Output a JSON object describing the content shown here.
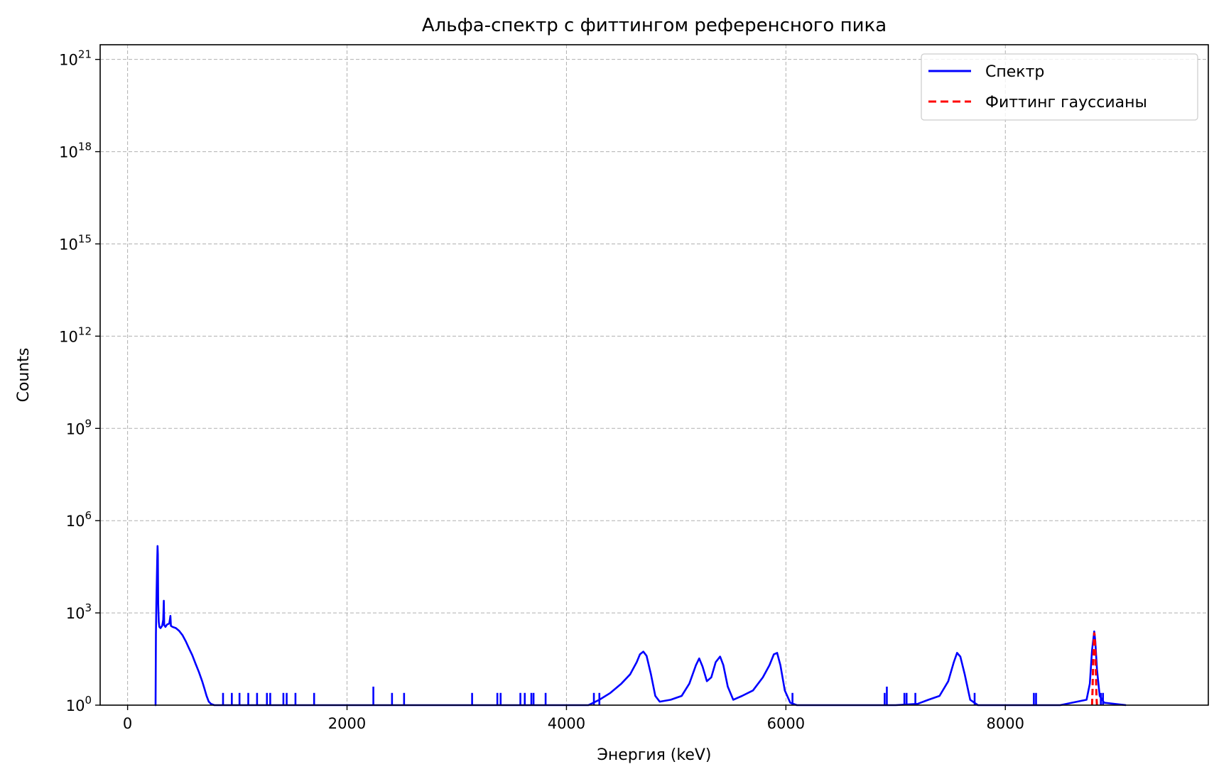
{
  "chart_data": {
    "type": "line",
    "title": "Альфа-спектр с фиттингом референсного пика",
    "xlabel": "Энергия (keV)",
    "ylabel": "Counts",
    "y_scale": "log",
    "xlim": [
      -250,
      9850
    ],
    "ylim": [
      1,
      3e+21
    ],
    "grid": true,
    "legend_position": "top-right",
    "x_ticks": [
      0,
      2000,
      4000,
      6000,
      8000
    ],
    "x_tick_labels": [
      "0",
      "2000",
      "4000",
      "6000",
      "8000"
    ],
    "y_ticks": [
      1,
      1000.0,
      1000000.0,
      1000000000.0,
      1000000000000.0,
      1000000000000000.0,
      1e+18,
      1e+21
    ],
    "y_tick_labels": [
      {
        "base": "10",
        "exp": "0"
      },
      {
        "base": "10",
        "exp": "3"
      },
      {
        "base": "10",
        "exp": "6"
      },
      {
        "base": "10",
        "exp": "9"
      },
      {
        "base": "10",
        "exp": "12"
      },
      {
        "base": "10",
        "exp": "15"
      },
      {
        "base": "10",
        "exp": "18"
      },
      {
        "base": "10",
        "exp": "21"
      }
    ],
    "series": [
      {
        "name": "Спектр",
        "color": "#0000ff",
        "style": "solid",
        "points": [
          [
            250,
            1
          ],
          [
            255,
            1
          ],
          [
            258,
            200
          ],
          [
            262,
            2000
          ],
          [
            266,
            10000
          ],
          [
            270,
            50000
          ],
          [
            273,
            150000
          ],
          [
            276,
            80000
          ],
          [
            279,
            2000
          ],
          [
            284,
            500
          ],
          [
            290,
            350
          ],
          [
            300,
            320
          ],
          [
            315,
            380
          ],
          [
            325,
            600
          ],
          [
            330,
            2500
          ],
          [
            334,
            400
          ],
          [
            345,
            350
          ],
          [
            360,
            420
          ],
          [
            380,
            450
          ],
          [
            390,
            800
          ],
          [
            395,
            380
          ],
          [
            410,
            350
          ],
          [
            440,
            320
          ],
          [
            470,
            260
          ],
          [
            500,
            190
          ],
          [
            530,
            120
          ],
          [
            560,
            70
          ],
          [
            590,
            42
          ],
          [
            620,
            22
          ],
          [
            650,
            12
          ],
          [
            680,
            6
          ],
          [
            700,
            3.5
          ],
          [
            720,
            2
          ],
          [
            740,
            1.3
          ],
          [
            760,
            1.1
          ],
          [
            790,
            1
          ],
          [
            1100,
            1
          ],
          [
            1600,
            1
          ],
          [
            2000,
            1
          ],
          [
            2500,
            1
          ],
          [
            3000,
            1
          ],
          [
            3500,
            1
          ],
          [
            4000,
            1
          ],
          [
            4200,
            1
          ],
          [
            4300,
            1.5
          ],
          [
            4400,
            2.5
          ],
          [
            4500,
            5
          ],
          [
            4580,
            10
          ],
          [
            4640,
            25
          ],
          [
            4670,
            45
          ],
          [
            4700,
            55
          ],
          [
            4730,
            40
          ],
          [
            4770,
            10
          ],
          [
            4810,
            2
          ],
          [
            4850,
            1.3
          ],
          [
            4950,
            1.5
          ],
          [
            5050,
            2
          ],
          [
            5120,
            5
          ],
          [
            5180,
            20
          ],
          [
            5210,
            33
          ],
          [
            5240,
            18
          ],
          [
            5280,
            6
          ],
          [
            5320,
            8
          ],
          [
            5360,
            25
          ],
          [
            5400,
            38
          ],
          [
            5430,
            20
          ],
          [
            5470,
            4
          ],
          [
            5520,
            1.5
          ],
          [
            5600,
            2
          ],
          [
            5700,
            3
          ],
          [
            5790,
            8
          ],
          [
            5850,
            20
          ],
          [
            5890,
            45
          ],
          [
            5920,
            50
          ],
          [
            5950,
            20
          ],
          [
            5990,
            3
          ],
          [
            6040,
            1.2
          ],
          [
            6100,
            1
          ],
          [
            6500,
            1
          ],
          [
            7000,
            1
          ],
          [
            7200,
            1.1
          ],
          [
            7300,
            1.5
          ],
          [
            7400,
            2
          ],
          [
            7480,
            6
          ],
          [
            7530,
            25
          ],
          [
            7560,
            50
          ],
          [
            7590,
            38
          ],
          [
            7630,
            10
          ],
          [
            7680,
            1.5
          ],
          [
            7750,
            1
          ],
          [
            8000,
            1
          ],
          [
            8500,
            1
          ],
          [
            8740,
            1.5
          ],
          [
            8770,
            5
          ],
          [
            8790,
            60
          ],
          [
            8810,
            250
          ],
          [
            8820,
            120
          ],
          [
            8835,
            15
          ],
          [
            8860,
            2
          ],
          [
            8900,
            1.2
          ],
          [
            9100,
            1
          ]
        ]
      },
      {
        "name": "Фиттинг гауссианы",
        "color": "#ff0000",
        "style": "dashed",
        "points": [
          [
            8790,
            1
          ],
          [
            8795,
            3
          ],
          [
            8800,
            20
          ],
          [
            8805,
            90
          ],
          [
            8810,
            230
          ],
          [
            8815,
            180
          ],
          [
            8820,
            60
          ],
          [
            8825,
            12
          ],
          [
            8830,
            2
          ],
          [
            8835,
            1
          ]
        ]
      }
    ],
    "spikes": [
      {
        "x": 870,
        "y": 2.5
      },
      {
        "x": 950,
        "y": 2.5
      },
      {
        "x": 1020,
        "y": 2.5
      },
      {
        "x": 1100,
        "y": 2.5
      },
      {
        "x": 1180,
        "y": 2.5
      },
      {
        "x": 1270,
        "y": 2.5
      },
      {
        "x": 1300,
        "y": 2.5
      },
      {
        "x": 1420,
        "y": 2.5
      },
      {
        "x": 1450,
        "y": 2.5
      },
      {
        "x": 1530,
        "y": 2.5
      },
      {
        "x": 1700,
        "y": 2.5
      },
      {
        "x": 2240,
        "y": 4
      },
      {
        "x": 2410,
        "y": 2.5
      },
      {
        "x": 2520,
        "y": 2.5
      },
      {
        "x": 3140,
        "y": 2.5
      },
      {
        "x": 3370,
        "y": 2.5
      },
      {
        "x": 3400,
        "y": 2.5
      },
      {
        "x": 3580,
        "y": 2.5
      },
      {
        "x": 3620,
        "y": 2.5
      },
      {
        "x": 3680,
        "y": 2.5
      },
      {
        "x": 3700,
        "y": 2.5
      },
      {
        "x": 3810,
        "y": 2.5
      },
      {
        "x": 4250,
        "y": 2.5
      },
      {
        "x": 4300,
        "y": 2.5
      },
      {
        "x": 6060,
        "y": 2.5
      },
      {
        "x": 6900,
        "y": 2.5
      },
      {
        "x": 6920,
        "y": 4
      },
      {
        "x": 7080,
        "y": 2.5
      },
      {
        "x": 7100,
        "y": 2.5
      },
      {
        "x": 7180,
        "y": 2.5
      },
      {
        "x": 7720,
        "y": 2.5
      },
      {
        "x": 8260,
        "y": 2.5
      },
      {
        "x": 8280,
        "y": 2.5
      },
      {
        "x": 8870,
        "y": 2.5
      },
      {
        "x": 8890,
        "y": 2.5
      }
    ]
  }
}
